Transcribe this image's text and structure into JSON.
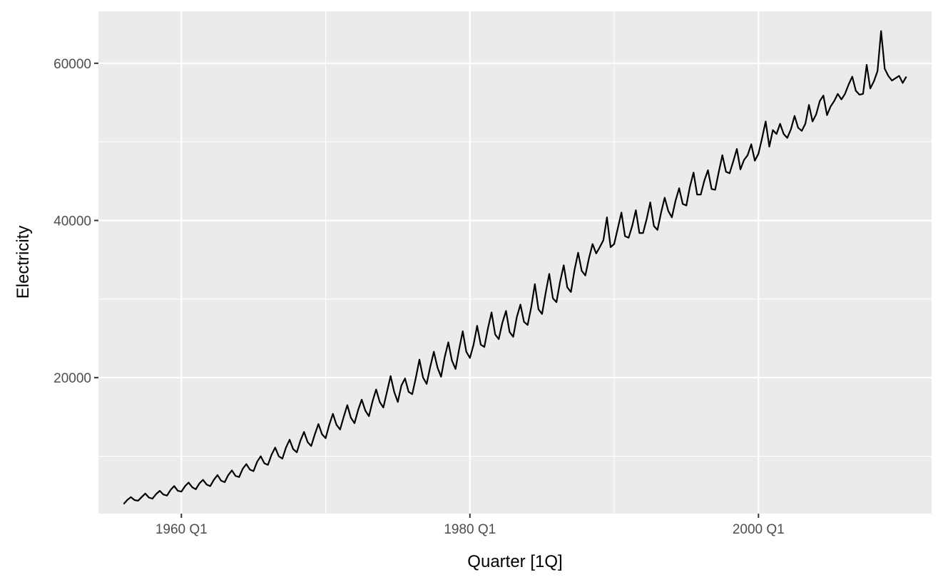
{
  "chart_data": {
    "type": "line",
    "xlabel": "Quarter [1Q]",
    "ylabel": "Electricity",
    "x_start": "1956 Q1",
    "x_end": "2010 Q2",
    "frequency": "quarterly",
    "xlim": [
      "1954 Q2",
      "2012 Q1"
    ],
    "ylim": [
      2700,
      66600
    ],
    "x_ticks": [
      {
        "label": "1960 Q1",
        "value": 1960.0
      },
      {
        "label": "1980 Q1",
        "value": 1980.0
      },
      {
        "label": "2000 Q1",
        "value": 2000.0
      }
    ],
    "x_minor_ticks": [
      1970.0,
      1990.0
    ],
    "y_ticks": [
      {
        "label": "20000",
        "value": 20000
      },
      {
        "label": "40000",
        "value": 40000
      },
      {
        "label": "60000",
        "value": 60000
      }
    ],
    "y_minor_ticks": [
      10000,
      30000,
      50000
    ],
    "grid": true,
    "legend": "none",
    "colors": {
      "panel": "#ebebeb",
      "grid": "#ffffff",
      "line": "#000000"
    },
    "series": [
      {
        "values": [
          3923,
          4436,
          4806,
          4418,
          4339,
          4811,
          5259,
          4735,
          4608,
          5196,
          5600,
          5128,
          4989,
          5708,
          6209,
          5613,
          5500,
          6187,
          6651,
          6050,
          5800,
          6550,
          7000,
          6400,
          6200,
          7000,
          7600,
          6900,
          6700,
          7600,
          8200,
          7500,
          7350,
          8400,
          9000,
          8300,
          8100,
          9300,
          10000,
          9100,
          8900,
          10200,
          11100,
          10000,
          9700,
          11100,
          12100,
          10900,
          10500,
          12000,
          13100,
          11800,
          11300,
          12800,
          14100,
          12800,
          12300,
          14000,
          15400,
          14000,
          13400,
          15000,
          16500,
          14900,
          14200,
          15900,
          17200,
          15800,
          15100,
          17000,
          18500,
          16900,
          16200,
          18200,
          20200,
          18200,
          16900,
          19000,
          19900,
          18200,
          17900,
          20000,
          22300,
          20000,
          19200,
          21400,
          23300,
          21300,
          20100,
          22600,
          24500,
          22200,
          21100,
          23600,
          25900,
          23300,
          22500,
          24200,
          26600,
          24200,
          23900,
          26300,
          28300,
          25500,
          24900,
          27000,
          28500,
          25800,
          25200,
          27700,
          29300,
          27100,
          26700,
          29000,
          31900,
          28700,
          28100,
          30800,
          33200,
          30100,
          29600,
          32200,
          34300,
          31500,
          30900,
          33700,
          35900,
          33600,
          33000,
          35200,
          37000,
          35800,
          36600,
          37500,
          40400,
          36600,
          37000,
          39000,
          41000,
          38000,
          37800,
          39300,
          41300,
          38400,
          38400,
          40200,
          42300,
          39300,
          38800,
          41000,
          42900,
          41200,
          40400,
          42500,
          44100,
          42100,
          41900,
          44300,
          46100,
          43300,
          43300,
          45100,
          46400,
          44000,
          43900,
          46200,
          48300,
          46200,
          46000,
          47500,
          49100,
          46500,
          47700,
          48300,
          49700,
          47600,
          48500,
          50500,
          52600,
          49400,
          51500,
          51000,
          52300,
          51000,
          50500,
          51600,
          53300,
          51800,
          51400,
          52300,
          54700,
          52600,
          53500,
          55200,
          55900,
          53400,
          54500,
          55200,
          56100,
          55400,
          56100,
          57300,
          58300,
          56500,
          56000,
          56100,
          59800,
          56800,
          57700,
          59000,
          64100,
          59300,
          58400,
          57800,
          58100,
          58400,
          57500,
          58300
        ]
      }
    ]
  }
}
